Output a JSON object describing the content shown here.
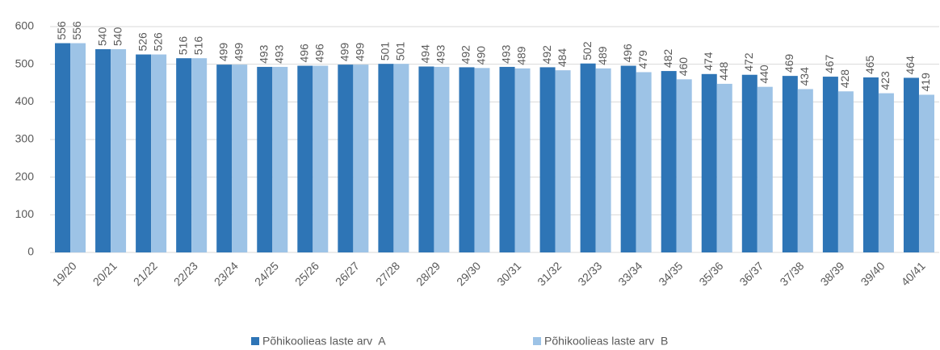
{
  "chart_data": {
    "type": "bar",
    "categories": [
      "19/20",
      "20/21",
      "21/22",
      "22/23",
      "23/24",
      "24/25",
      "25/26",
      "26/27",
      "27/28",
      "28/29",
      "29/30",
      "30/31",
      "31/32",
      "32/33",
      "33/34",
      "34/35",
      "35/36",
      "36/37",
      "37/38",
      "38/39",
      "39/40",
      "40/41"
    ],
    "series": [
      {
        "name": "Põhikoolieas laste arv  A",
        "color": "#2e75b6",
        "values": [
          556,
          540,
          526,
          516,
          499,
          493,
          496,
          499,
          501,
          494,
          492,
          493,
          492,
          502,
          496,
          482,
          474,
          472,
          469,
          467,
          465,
          464
        ]
      },
      {
        "name": "Põhikoolieas laste arv  B",
        "color": "#9dc3e6",
        "values": [
          556,
          540,
          526,
          516,
          499,
          493,
          496,
          499,
          501,
          493,
          490,
          489,
          484,
          489,
          479,
          460,
          448,
          440,
          434,
          428,
          423,
          419
        ]
      }
    ],
    "ylim": [
      0,
      600
    ],
    "yticks": [
      0,
      100,
      200,
      300,
      400,
      500,
      600
    ],
    "grid": true,
    "legend": "bottom"
  }
}
